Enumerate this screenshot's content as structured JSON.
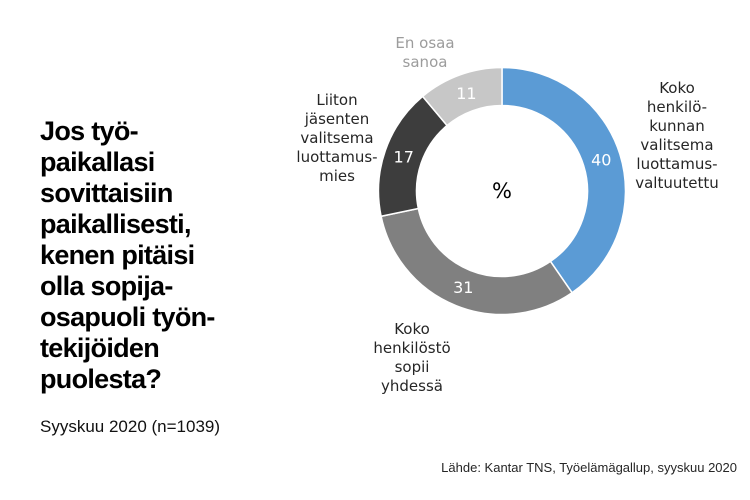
{
  "title": {
    "lines": [
      "Jos työ-",
      "paikallasi",
      "sovittaisiin",
      "paikallisesti,",
      "kenen pitäisi",
      "olla sopija-",
      "osapuoli työn-",
      "tekijöiden",
      "puolesta?"
    ],
    "subtitle": "Syyskuu 2020 (n=1039)"
  },
  "source": "Lähde: Kantar TNS, Työelämägallup, syyskuu 2020",
  "chart_data": {
    "type": "pie",
    "subtype": "donut",
    "units": "%",
    "center_label": "%",
    "start_angle_deg": 0,
    "direction": "clockwise",
    "value_label_color": "#ffffff",
    "slices": [
      {
        "key": "koko-henkilokunnan-valitsema-luottamusvaltuutettu",
        "label": "Koko henkilökunnan valitsema luottamusvaltuutettu",
        "label_lines": [
          "Koko",
          "henkilö-",
          "kunnan",
          "valitsema",
          "luottamus-",
          "valtuutettu"
        ],
        "value": 40,
        "color": "#5B9BD5",
        "label_color": "#262626"
      },
      {
        "key": "koko-henkilosto-sopii-yhdessa",
        "label": "Koko henkilöstö sopii yhdessä",
        "label_lines": [
          "Koko",
          "henkilöstö",
          "sopii",
          "yhdessä"
        ],
        "value": 31,
        "color": "#808080",
        "label_color": "#262626"
      },
      {
        "key": "liiton-jasenten-valitsema-luottamusmies",
        "label": "Liiton jäsenten valitsema luottamusmies",
        "label_lines": [
          "Liiton",
          "jäsenten",
          "valitsema",
          "luottamus-",
          "mies"
        ],
        "value": 17,
        "color": "#3D3D3D",
        "label_color": "#262626"
      },
      {
        "key": "en-osaa-sanoa",
        "label": "En osaa sanoa",
        "label_lines": [
          "En osaa",
          "sanoa"
        ],
        "value": 11,
        "color": "#C7C7C7",
        "label_color": "#9C9C9C"
      }
    ]
  }
}
